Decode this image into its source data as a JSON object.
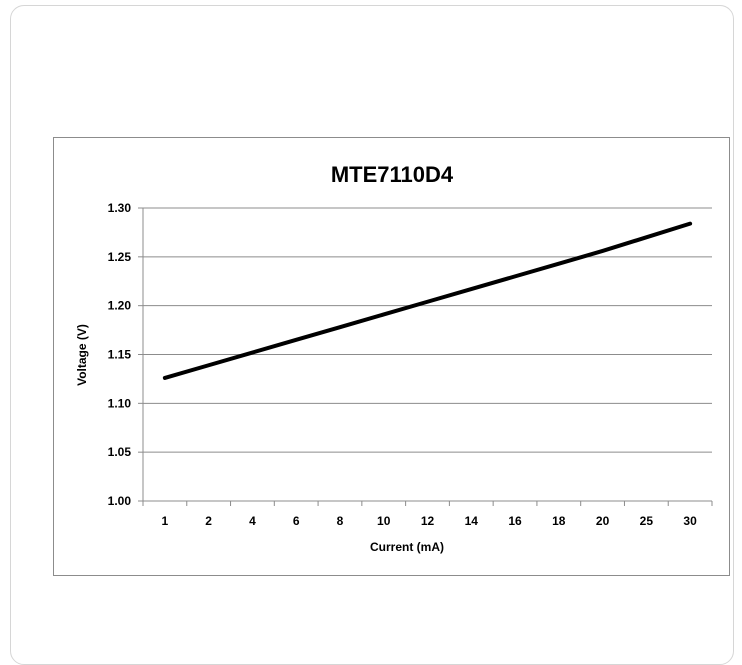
{
  "chart_data": {
    "type": "line",
    "title": "MTE7110D4",
    "xlabel": "Current (mA)",
    "ylabel": "Voltage (V)",
    "categories": [
      "1",
      "2",
      "4",
      "6",
      "8",
      "10",
      "12",
      "14",
      "16",
      "18",
      "20",
      "25",
      "30"
    ],
    "series": [
      {
        "values": [
          1.126,
          1.139,
          1.152,
          1.165,
          1.178,
          1.191,
          1.204,
          1.217,
          1.23,
          1.243,
          1.256,
          1.27,
          1.284
        ]
      }
    ],
    "ylim": [
      1.0,
      1.3
    ],
    "yticks": [
      "1.00",
      "1.05",
      "1.10",
      "1.15",
      "1.20",
      "1.25",
      "1.30"
    ],
    "grid": true,
    "legend": "none",
    "line_color": "#000000",
    "grid_color": "#8c8c8c"
  }
}
